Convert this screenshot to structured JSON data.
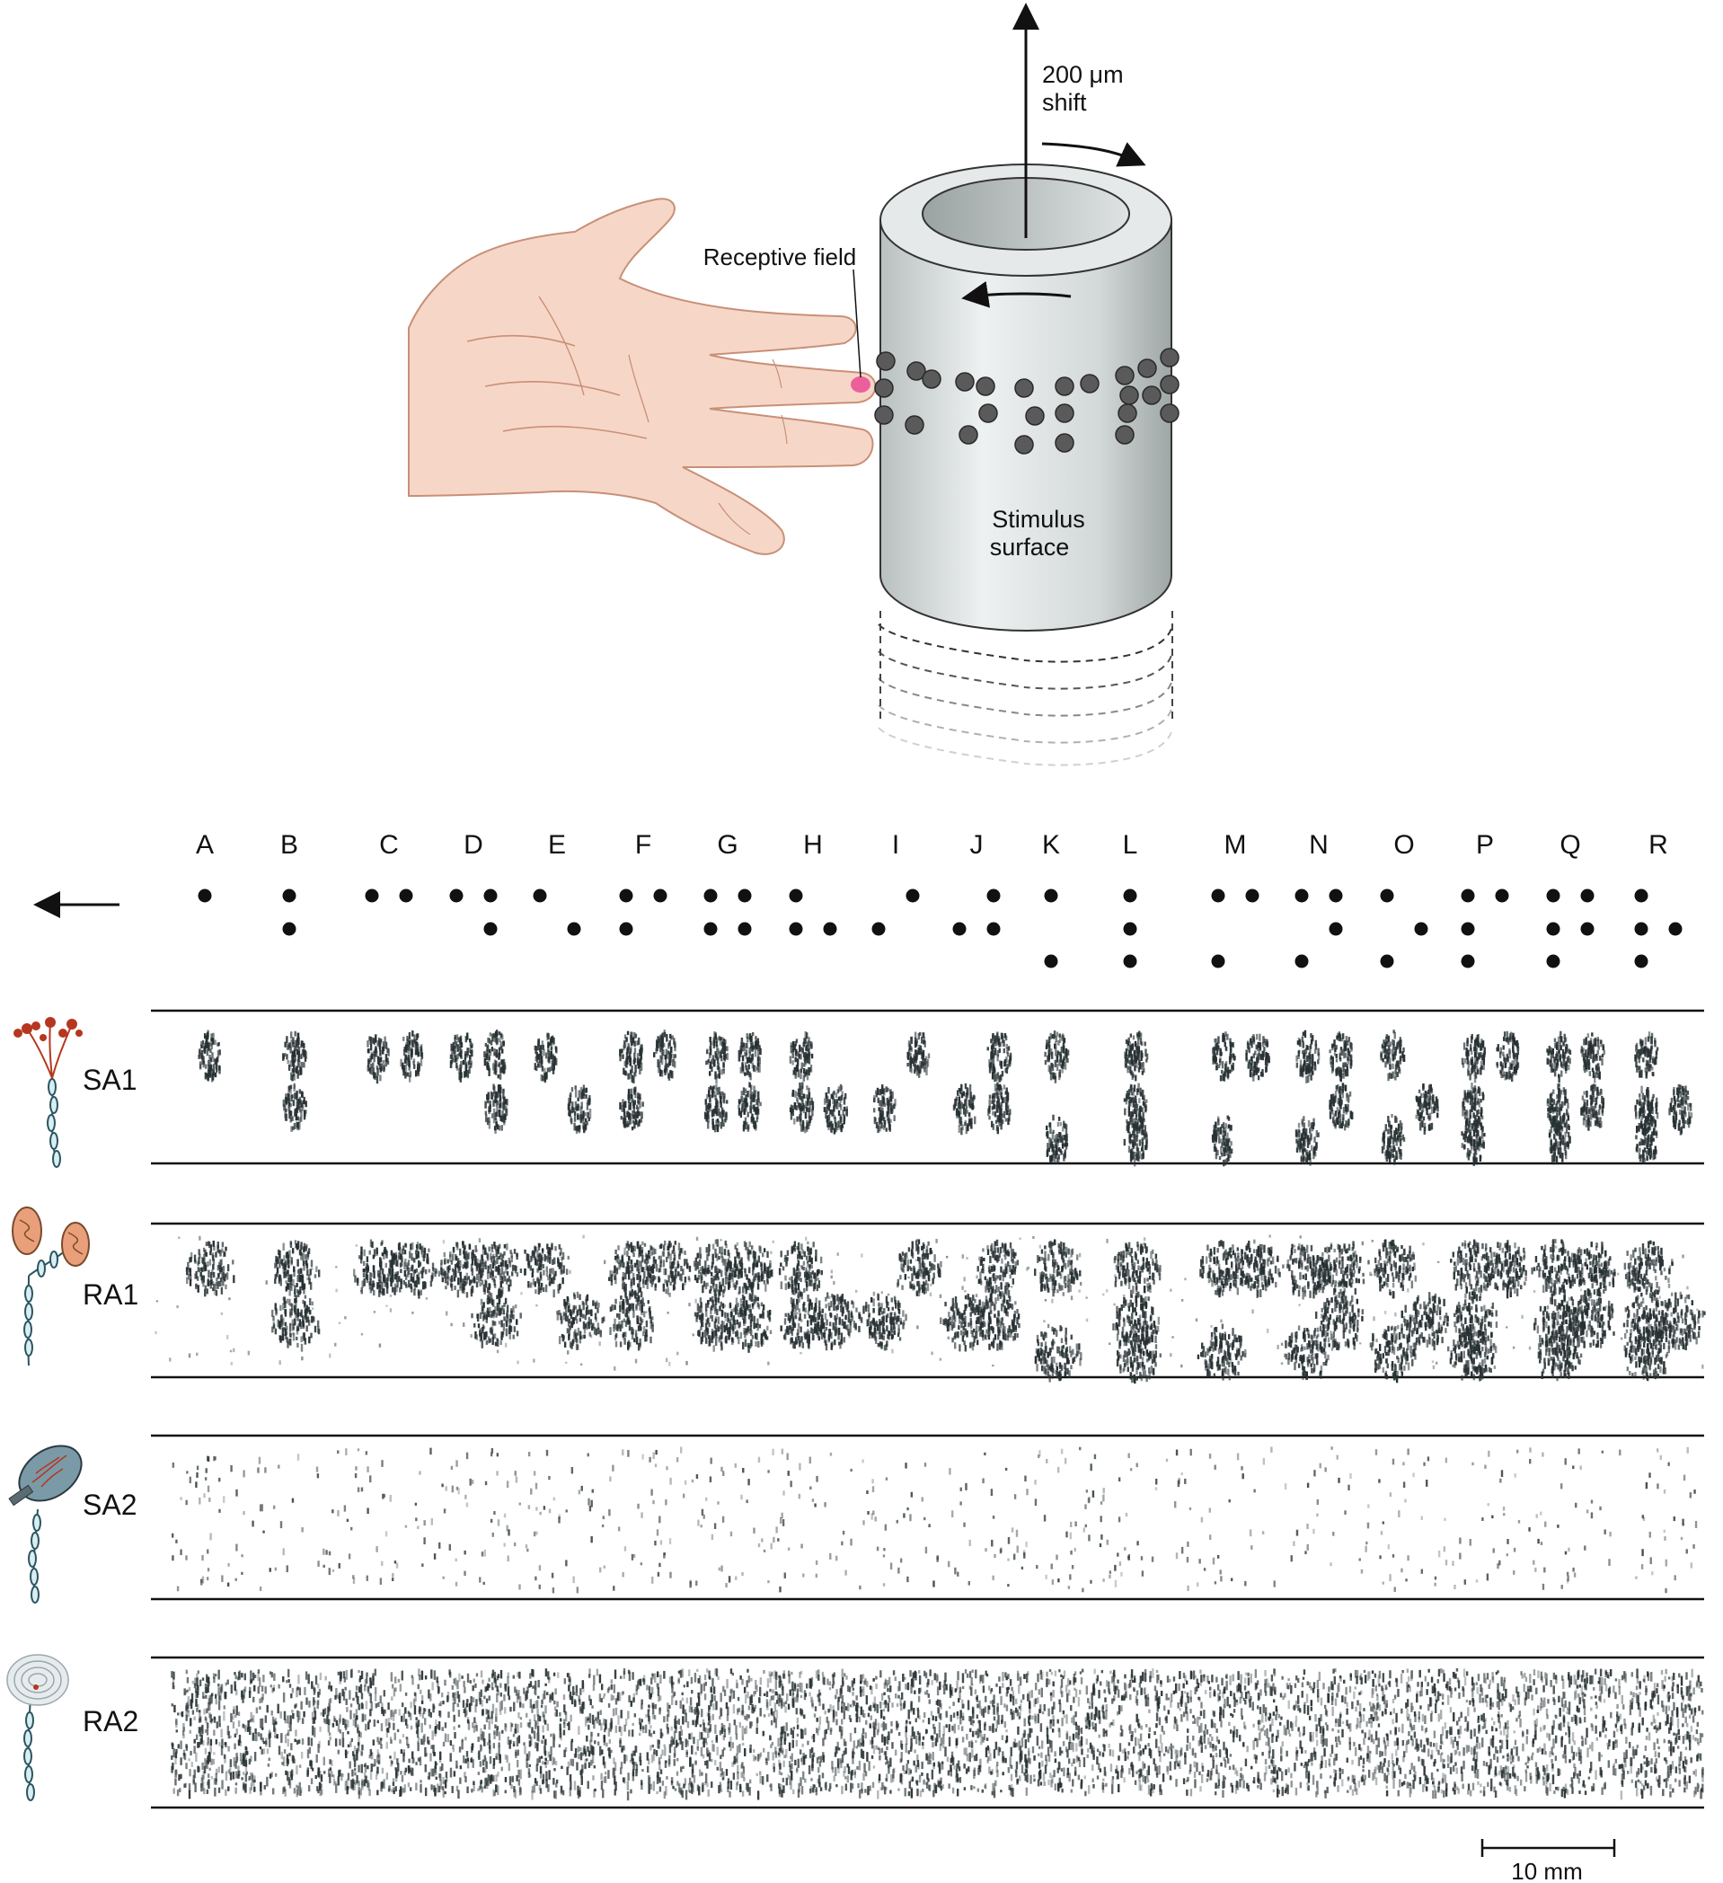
{
  "apparatus": {
    "shift_label_line1": "200 μm",
    "shift_label_line2": "shift",
    "receptive_field_label": "Receptive field",
    "stimulus_label_line1": "Stimulus",
    "stimulus_label_line2": "surface"
  },
  "braille": {
    "letters": [
      "A",
      "B",
      "C",
      "D",
      "E",
      "F",
      "G",
      "H",
      "I",
      "J",
      "K",
      "L",
      "M",
      "N",
      "O",
      "P",
      "Q",
      "R"
    ],
    "patterns": [
      [
        1
      ],
      [
        1,
        2
      ],
      [
        1,
        4
      ],
      [
        1,
        4,
        5
      ],
      [
        1,
        5
      ],
      [
        1,
        2,
        4
      ],
      [
        1,
        2,
        4,
        5
      ],
      [
        1,
        2,
        5
      ],
      [
        2,
        4
      ],
      [
        2,
        4,
        5
      ],
      [
        1,
        3
      ],
      [
        1,
        2,
        3
      ],
      [
        1,
        3,
        4
      ],
      [
        1,
        3,
        4,
        5
      ],
      [
        1,
        3,
        5
      ],
      [
        1,
        2,
        3,
        4
      ],
      [
        1,
        2,
        3,
        4,
        5
      ],
      [
        1,
        2,
        3,
        5
      ]
    ],
    "scan_direction": "left"
  },
  "afferents": [
    {
      "id": "SA1",
      "label": "SA1",
      "response": "clear"
    },
    {
      "id": "RA1",
      "label": "RA1",
      "response": "smeared"
    },
    {
      "id": "SA2",
      "label": "SA2",
      "response": "sparse"
    },
    {
      "id": "RA2",
      "label": "RA2",
      "response": "dense"
    }
  ],
  "scale_bar": {
    "label": "10 mm"
  },
  "colors": {
    "skin": "#f6d7c7",
    "skin_line": "#c98f78",
    "receptive_field": "#ec5f9b",
    "cylinder": "#d6dbdb",
    "dot": "#5a5a5a",
    "raster": "#263032",
    "sa1_ending": "#b5371f",
    "ra1_ending": "#e9a07a",
    "sa2_ending": "#7a9aa8",
    "ra2_ending": "#c9d3d6"
  }
}
